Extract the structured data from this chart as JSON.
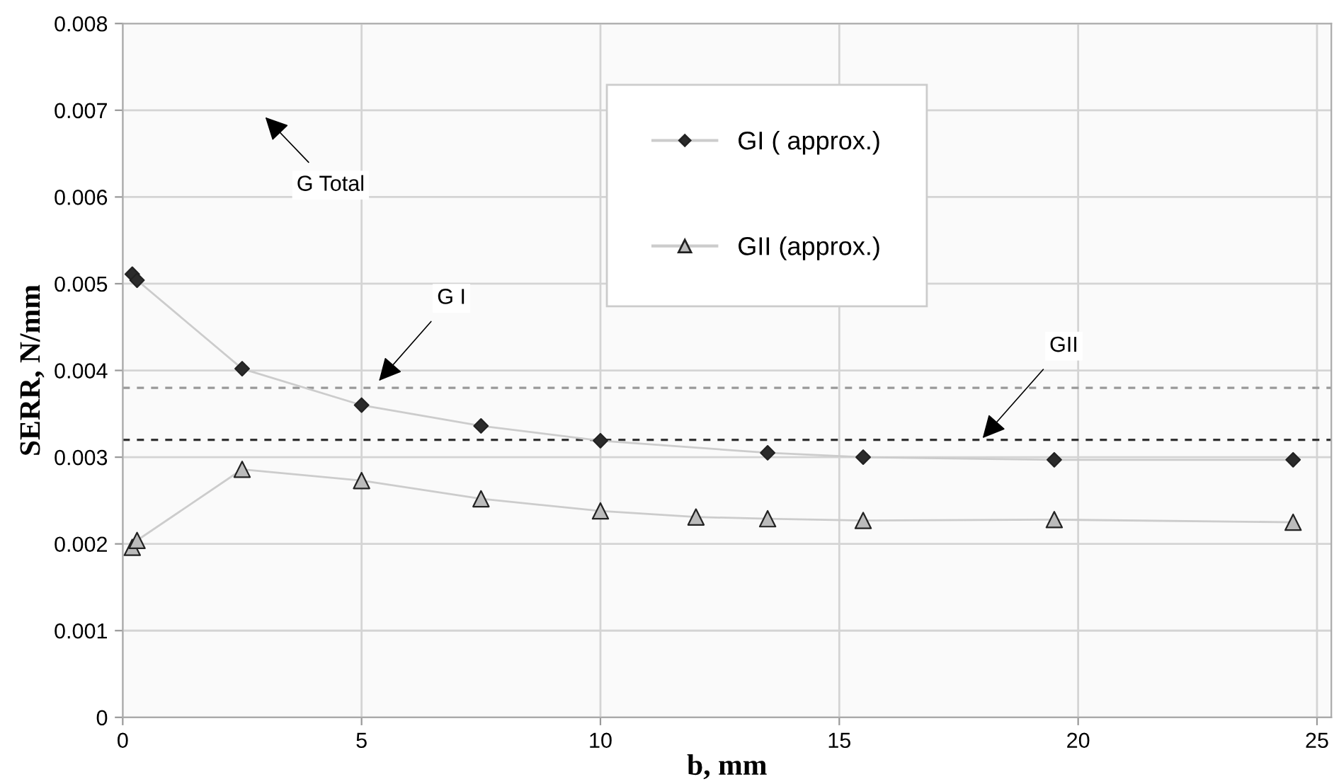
{
  "chart_data": {
    "type": "line",
    "xlabel": "b, mm",
    "ylabel": "SERR, N/mm",
    "series": [
      {
        "name": "GI ( approx.)",
        "color": "#2b2b2b",
        "marker": "diamond",
        "x": [
          0.2,
          0.3,
          2.5,
          5,
          7.5,
          10,
          13.5,
          15.5,
          19.5,
          24.5
        ],
        "values": [
          0.00511,
          0.00504,
          0.00402,
          0.0036,
          0.00336,
          0.00319,
          0.00305,
          0.003,
          0.00297,
          0.00297
        ]
      },
      {
        "name": "GII (approx.)",
        "color": "#bbbbbb",
        "marker": "triangle",
        "x": [
          0.2,
          0.3,
          2.5,
          5,
          7.5,
          10,
          12,
          13.5,
          15.5,
          19.5,
          24.5
        ],
        "values": [
          0.00196,
          0.00204,
          0.00286,
          0.00273,
          0.00252,
          0.00238,
          0.00231,
          0.00229,
          0.00227,
          0.00228,
          0.00225
        ]
      }
    ],
    "ref_lines": [
      {
        "axis": "y",
        "value": 0.0038,
        "color": "#999999",
        "line_style": "dashed"
      },
      {
        "axis": "y",
        "value": 0.0032,
        "color": "#333333",
        "line_style": "dashed"
      }
    ],
    "annotations": [
      "G Total",
      "G I",
      {
        "text": "GII",
        "x": 18.0,
        "y": 0.00322
      }
    ],
    "xlim": [
      0,
      25.3
    ],
    "ylim": [
      0,
      0.008
    ],
    "xticks": [
      0,
      5,
      10,
      15,
      20,
      25
    ],
    "yticks": [
      0,
      0.001,
      0.002,
      0.003,
      0.004,
      0.005,
      0.006,
      0.007,
      0.008
    ],
    "grid": true,
    "legend": "top"
  }
}
